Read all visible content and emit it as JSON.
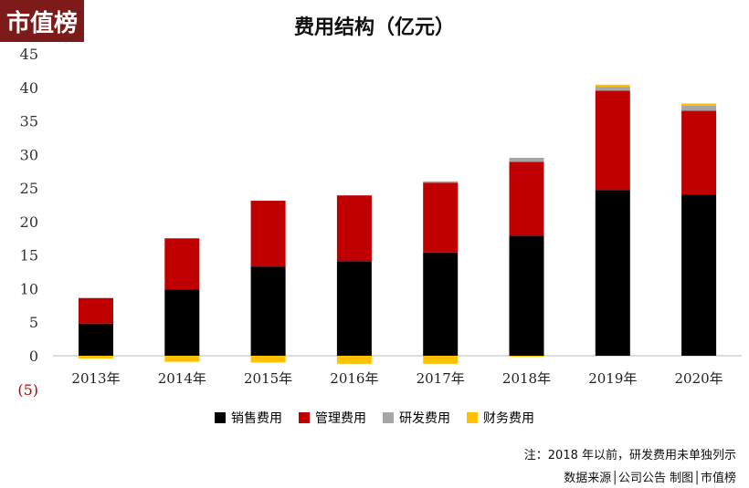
{
  "logo": "市值榜",
  "chart_data": {
    "type": "bar",
    "stacked": true,
    "title": "费用结构（亿元）",
    "categories": [
      "2013年",
      "2014年",
      "2015年",
      "2016年",
      "2017年",
      "2018年",
      "2019年",
      "2020年"
    ],
    "series": [
      {
        "name": "销售费用",
        "color": "#000000",
        "values": [
          4.8,
          9.9,
          13.3,
          14.1,
          15.4,
          17.9,
          24.7,
          24.0
        ]
      },
      {
        "name": "管理费用",
        "color": "#c00000",
        "values": [
          3.8,
          7.6,
          9.8,
          9.8,
          10.4,
          11.0,
          14.8,
          12.5
        ]
      },
      {
        "name": "研发费用",
        "color": "#a6a6a6",
        "values": [
          0,
          0,
          0,
          0,
          0.2,
          0.6,
          0.6,
          0.8
        ]
      },
      {
        "name": "财务费用",
        "color": "#ffc000",
        "values": [
          -0.4,
          -0.9,
          -1.0,
          -1.2,
          -1.2,
          -0.1,
          0.3,
          0.3
        ]
      }
    ],
    "yticks": [
      "45",
      "40",
      "35",
      "30",
      "25",
      "20",
      "15",
      "10",
      "5",
      "0",
      "(5)"
    ],
    "ylim": [
      -5,
      45
    ],
    "legend": "bottom",
    "grid": false
  },
  "note": "注：2018 年以前，研发费用未单独列示",
  "source": "数据来源│公司公告  制图│市值榜"
}
